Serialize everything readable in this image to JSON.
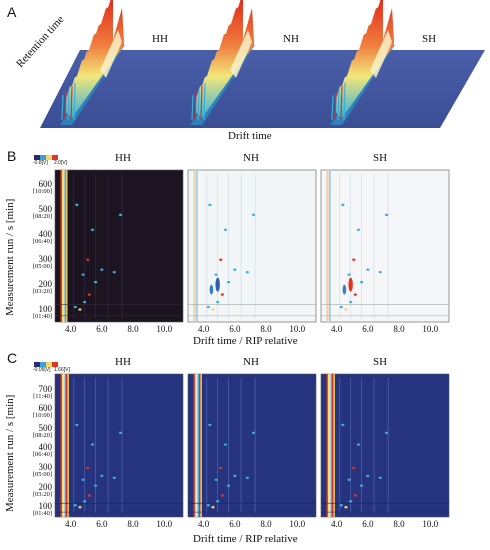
{
  "panels": {
    "A": {
      "letter": "A",
      "labels": {
        "retention_time": "Retention time",
        "drift_time": "Drift time"
      },
      "samples": [
        "HH",
        "NH",
        "SH"
      ]
    },
    "B": {
      "letter": "B",
      "legend": {
        "min": "-0.8[V]",
        "max": "2.0[V]"
      },
      "samples": [
        "HH",
        "NH",
        "SH"
      ],
      "ylabel": "Measurement run / s [min]",
      "xlabel": "Drift time / RIP relative",
      "yticks": [
        {
          "v": 600,
          "t": "600",
          "sub": "[10:00]"
        },
        {
          "v": 500,
          "t": "500",
          "sub": "[08:20]"
        },
        {
          "v": 400,
          "t": "400",
          "sub": "[06:40]"
        },
        {
          "v": 300,
          "t": "300",
          "sub": "[05:00]"
        },
        {
          "v": 200,
          "t": "200",
          "sub": "[03:20]"
        },
        {
          "v": 100,
          "t": "100",
          "sub": "[01:40]"
        }
      ],
      "xticks": [
        "4.0",
        "6.0",
        "8.0",
        "10.0"
      ],
      "backgrounds": [
        "#1c1420",
        "#f3f6f7",
        "#f5f6f7"
      ]
    },
    "C": {
      "letter": "C",
      "legend": {
        "min": "-0.05[V]",
        "max": "1.66[V]"
      },
      "samples": [
        "HH",
        "NH",
        "SH"
      ],
      "ylabel": "Measurement run / s [min]",
      "xlabel": "Drift time / RIP relative",
      "yticks": [
        {
          "v": 700,
          "t": "700",
          "sub": "[11:40]"
        },
        {
          "v": 600,
          "t": "600",
          "sub": "[10:00]"
        },
        {
          "v": 500,
          "t": "500",
          "sub": "[08:20]"
        },
        {
          "v": 400,
          "t": "400",
          "sub": "[06:40]"
        },
        {
          "v": 300,
          "t": "300",
          "sub": "[05:00]"
        },
        {
          "v": 200,
          "t": "200",
          "sub": "[03:20]"
        },
        {
          "v": 100,
          "t": "100",
          "sub": "[01:40]"
        }
      ],
      "xticks": [
        "4.0",
        "6.0",
        "8.0",
        "10.0"
      ],
      "backgrounds": [
        "#26337f",
        "#26337f",
        "#26337f"
      ]
    }
  },
  "chart_data": [
    {
      "type": "heatmap",
      "title": "",
      "panels": [
        "HH",
        "NH",
        "SH"
      ],
      "xlabel": "Drift time / RIP relative",
      "ylabel": "Measurement run / s [min]",
      "xlim": [
        3.0,
        11.2
      ],
      "ylim": [
        50,
        660
      ],
      "colorbar": {
        "min": -0.8,
        "max": 2.0,
        "unit": "V"
      },
      "xticks": [
        4.0,
        6.0,
        8.0,
        10.0
      ],
      "yticks": [
        100,
        200,
        300,
        400,
        500,
        600
      ]
    },
    {
      "type": "heatmap",
      "title": "",
      "panels": [
        "HH",
        "NH",
        "SH"
      ],
      "xlabel": "Drift time / RIP relative",
      "ylabel": "Measurement run / s [min]",
      "xlim": [
        3.0,
        11.2
      ],
      "ylim": [
        50,
        780
      ],
      "colorbar": {
        "min": -0.05,
        "max": 1.66,
        "unit": "V"
      },
      "xticks": [
        4.0,
        6.0,
        8.0,
        10.0
      ],
      "yticks": [
        100,
        200,
        300,
        400,
        500,
        600,
        700
      ]
    }
  ]
}
